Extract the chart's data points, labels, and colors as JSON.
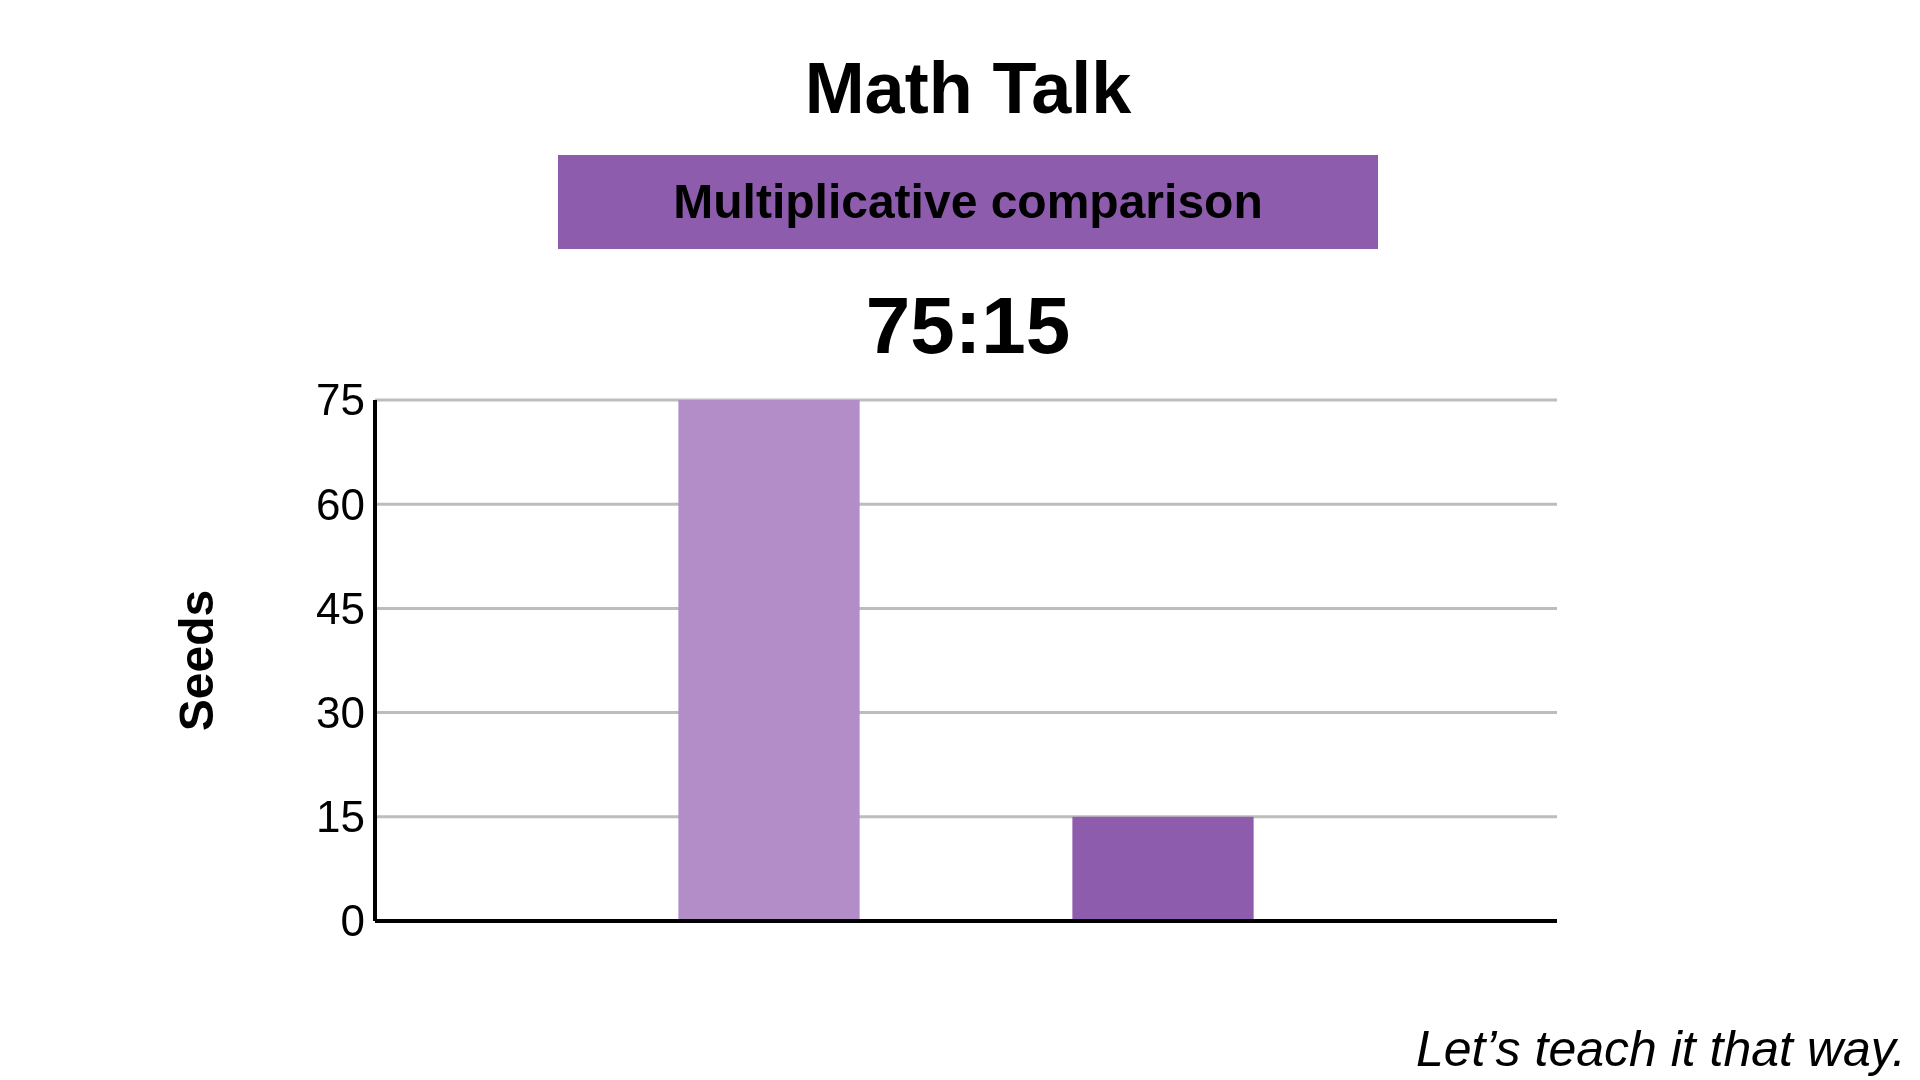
{
  "chart_data": {
    "type": "bar",
    "title": "Math Talk",
    "subtitle": "Multiplicative comparison",
    "ylabel": "Seeds",
    "categories": [
      null,
      null
    ],
    "values": [
      75,
      15
    ],
    "colors": [
      "#b38dc8",
      "#8e5cad"
    ],
    "ylim": [
      0,
      75
    ],
    "yticks": [
      0,
      15,
      30,
      45,
      60,
      75
    ],
    "grid": "y",
    "annotations": [
      "75:15",
      "Let’s teach it that way."
    ]
  }
}
